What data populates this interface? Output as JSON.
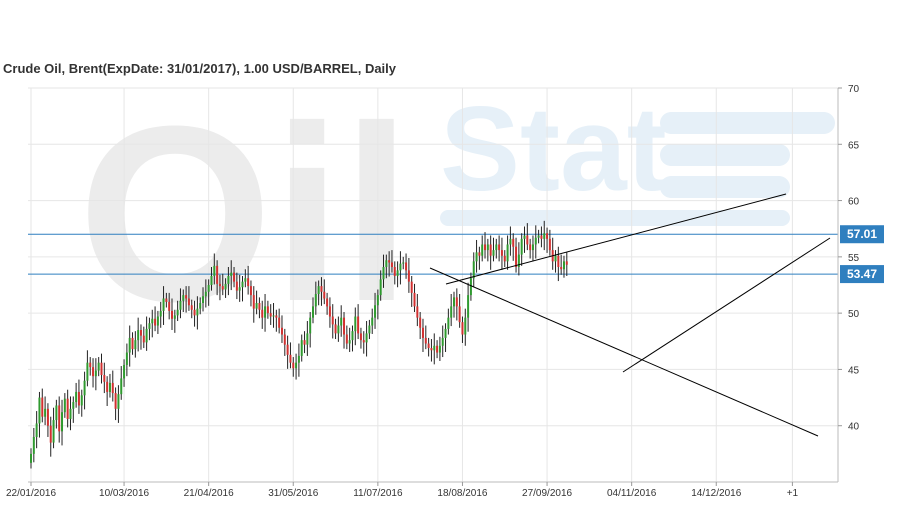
{
  "chart_data": {
    "type": "candlestick",
    "title": "Crude Oil, Brent(ExpDate: 31/01/2017), 1.00 USD/BARREL, Daily",
    "watermark": "OilStat",
    "x_tick_labels": [
      "22/01/2016",
      "10/03/2016",
      "21/04/2016",
      "31/05/2016",
      "11/07/2016",
      "18/08/2016",
      "27/09/2016",
      "04/11/2016",
      "14/12/2016",
      "+1"
    ],
    "x_tick_index": [
      0,
      33,
      63,
      93,
      123,
      153,
      183,
      213,
      243,
      270
    ],
    "y_ticks": [
      40,
      45,
      50,
      55,
      60,
      65,
      70
    ],
    "ylim": [
      35,
      70
    ],
    "grid": true,
    "horizontal_levels": [
      {
        "label": "57.01",
        "value": 57.01,
        "color": "#2f7fbf"
      },
      {
        "label": "53.47",
        "value": 53.47,
        "color": "#2f7fbf"
      }
    ],
    "close_series": [
      37.5,
      39.0,
      40.2,
      42.5,
      40.8,
      41.5,
      40.0,
      38.5,
      40.5,
      41.8,
      39.5,
      41.2,
      42.4,
      40.6,
      41.5,
      42.1,
      43.0,
      41.8,
      42.7,
      44.0,
      45.6,
      45.2,
      44.4,
      44.9,
      45.6,
      44.5,
      43.9,
      43.0,
      43.8,
      42.9,
      41.5,
      42.8,
      44.2,
      45.4,
      46.5,
      47.8,
      46.8,
      47.6,
      48.5,
      48.0,
      47.4,
      48.6,
      49.1,
      49.5,
      48.9,
      49.7,
      50.2,
      51.3,
      51.0,
      50.2,
      49.5,
      49.8,
      50.3,
      51.1,
      51.6,
      51.3,
      50.7,
      50.3,
      49.8,
      50.4,
      50.9,
      51.5,
      51.9,
      52.5,
      53.3,
      54.2,
      52.6,
      52.4,
      52.1,
      52.6,
      53.3,
      53.6,
      52.8,
      52.0,
      52.3,
      52.8,
      53.1,
      52.4,
      51.6,
      50.4,
      50.9,
      50.3,
      49.6,
      50.6,
      50.0,
      49.7,
      49.8,
      49.6,
      48.7,
      48.1,
      47.2,
      46.3,
      45.6,
      45.1,
      45.6,
      46.2,
      47.6,
      47.2,
      48.2,
      49.6,
      50.6,
      51.7,
      52.4,
      51.9,
      51.3,
      50.6,
      49.7,
      49.0,
      48.2,
      48.9,
      49.6,
      48.1,
      47.3,
      47.6,
      48.4,
      49.7,
      48.2,
      47.6,
      47.4,
      48.2,
      48.9,
      49.6,
      50.7,
      51.6,
      53.0,
      54.1,
      54.7,
      54.5,
      54.1,
      53.3,
      53.8,
      54.4,
      54.5,
      53.8,
      52.8,
      51.8,
      50.6,
      49.6,
      48.7,
      47.8,
      47.3,
      46.9,
      46.7,
      47.1,
      46.5,
      47.1,
      47.8,
      48.6,
      49.6,
      50.6,
      51.4,
      50.6,
      49.2,
      48.1,
      49.6,
      51.6,
      53.1,
      54.6,
      55.4,
      55.1,
      56.1,
      55.6,
      56.1,
      55.1,
      55.6,
      56.1,
      55.6,
      55.1,
      54.6,
      56.1,
      56.6,
      55.9,
      54.1,
      55.2,
      56.6,
      56.9,
      56.1,
      55.6,
      56.1,
      56.7,
      56.9,
      56.6,
      57.1,
      56.6,
      55.6,
      54.6,
      55.1,
      54.1,
      53.9,
      54.6,
      54.3
    ]
  }
}
